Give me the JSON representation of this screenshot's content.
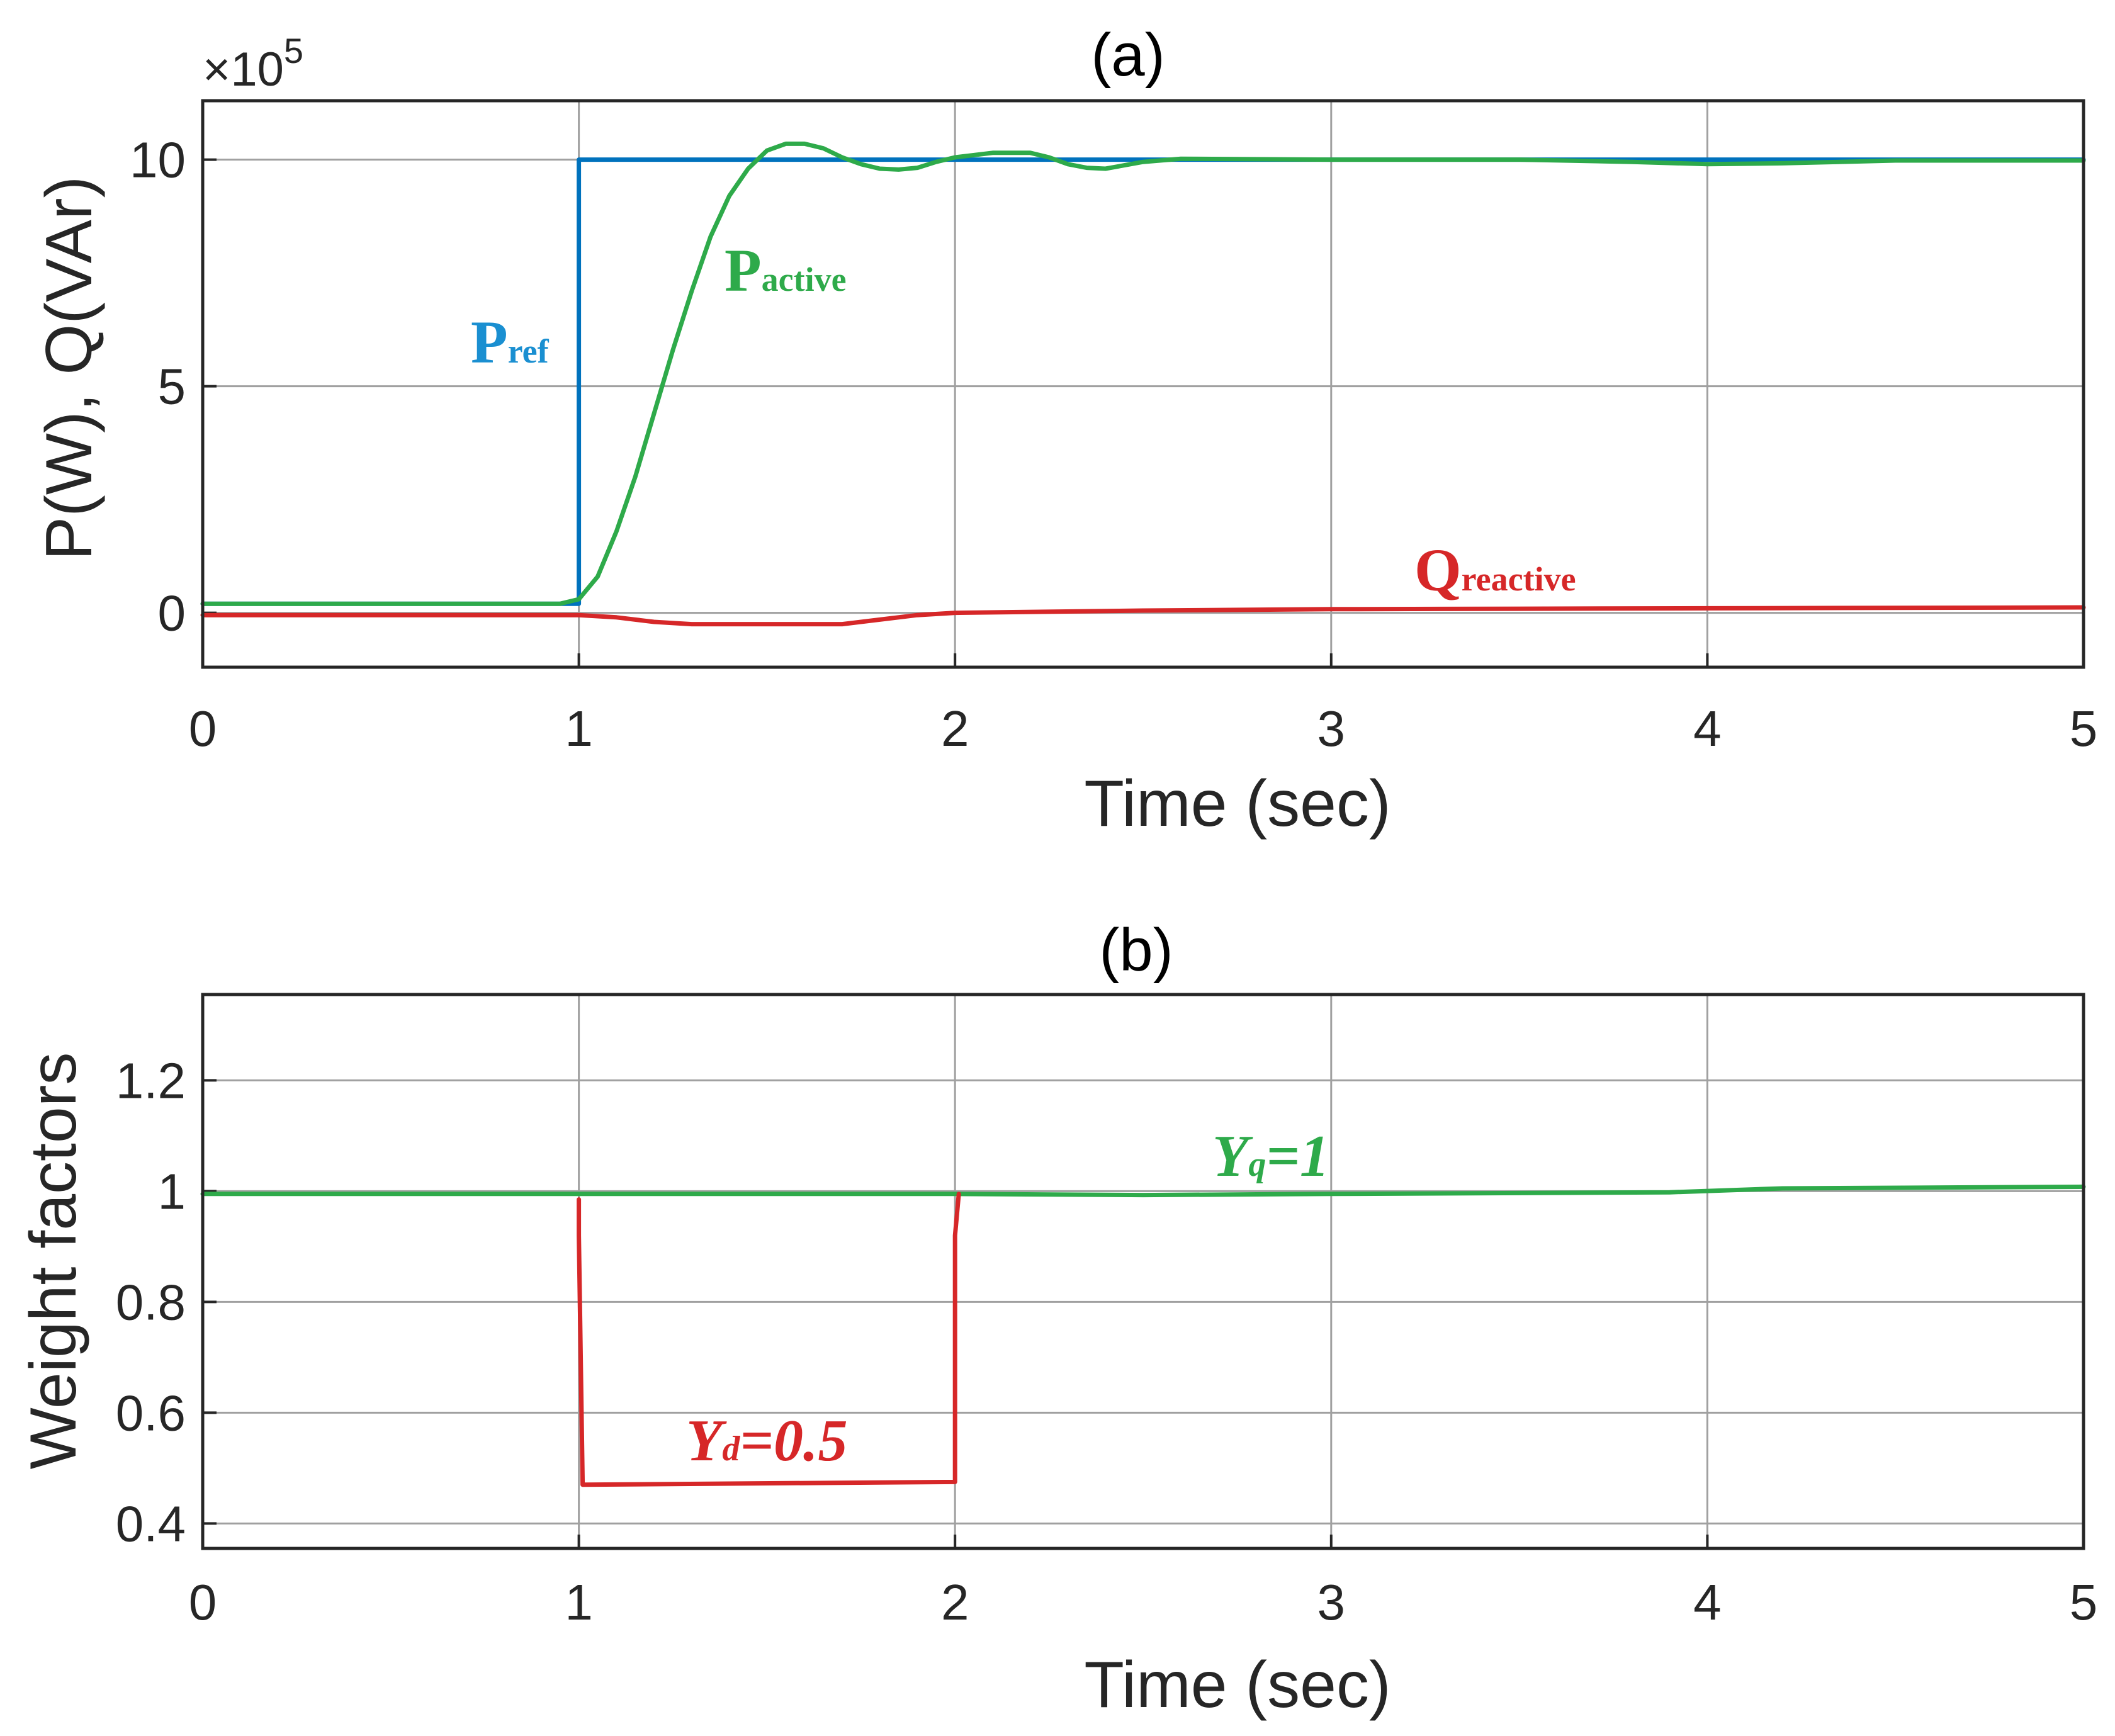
{
  "chart_data": [
    {
      "id": "a",
      "type": "line",
      "title": "(a)",
      "xlabel": "Time (sec)",
      "ylabel": "P(W), Q(VAr)",
      "y_exponent_base": "×10",
      "y_exponent_power": "5",
      "xlim": [
        0,
        5
      ],
      "ylim": [
        -1.2,
        11.3
      ],
      "xticks": [
        0,
        1,
        2,
        3,
        4,
        5
      ],
      "xtick_labels": [
        "0",
        "1",
        "2",
        "3",
        "4",
        "5"
      ],
      "yticks": [
        0,
        5,
        10
      ],
      "ytick_labels": [
        "0",
        "5",
        "10"
      ],
      "grid": true,
      "series": [
        {
          "name": "Pref",
          "color": "#0072BD",
          "x": [
            0,
            1,
            1,
            5
          ],
          "y": [
            0.2,
            0.2,
            10,
            10
          ]
        },
        {
          "name": "Pactive",
          "color": "#2EAA4A",
          "x": [
            0,
            0.95,
            1.0,
            1.05,
            1.1,
            1.15,
            1.2,
            1.25,
            1.3,
            1.35,
            1.4,
            1.45,
            1.5,
            1.55,
            1.6,
            1.65,
            1.7,
            1.75,
            1.8,
            1.85,
            1.9,
            1.95,
            2.0,
            2.1,
            2.2,
            2.25,
            2.3,
            2.35,
            2.4,
            2.5,
            2.6,
            3.0,
            3.5,
            3.8,
            4.0,
            4.2,
            4.5,
            5.0
          ],
          "y": [
            0.2,
            0.2,
            0.3,
            0.8,
            1.8,
            3.0,
            4.4,
            5.8,
            7.1,
            8.3,
            9.2,
            9.8,
            10.2,
            10.35,
            10.35,
            10.25,
            10.05,
            9.9,
            9.8,
            9.78,
            9.82,
            9.95,
            10.05,
            10.15,
            10.15,
            10.05,
            9.9,
            9.82,
            9.8,
            9.95,
            10.02,
            10.0,
            10.0,
            9.95,
            9.9,
            9.92,
            9.98,
            9.98
          ]
        },
        {
          "name": "Qreactive",
          "color": "#D62728",
          "x": [
            0,
            1.0,
            1.1,
            1.2,
            1.3,
            1.5,
            1.7,
            1.8,
            1.9,
            2.0,
            2.5,
            3.0,
            4.0,
            5.0
          ],
          "y": [
            -0.05,
            -0.05,
            -0.1,
            -0.2,
            -0.25,
            -0.25,
            -0.25,
            -0.15,
            -0.05,
            0.0,
            0.05,
            0.08,
            0.1,
            0.12
          ]
        }
      ],
      "annotations": [
        {
          "main": "P",
          "sub": "ref",
          "color": "#1A8FD1"
        },
        {
          "main": "P",
          "sub": "active",
          "color": "#2EAA4A"
        },
        {
          "main": "Q",
          "sub": "reactive",
          "color": "#D62728"
        }
      ]
    },
    {
      "id": "b",
      "type": "line",
      "title": "(b)",
      "xlabel": "Time (sec)",
      "ylabel": "Weight factors",
      "xlim": [
        0,
        5
      ],
      "ylim": [
        0.355,
        1.355
      ],
      "xticks": [
        0,
        1,
        2,
        3,
        4,
        5
      ],
      "xtick_labels": [
        "0",
        "1",
        "2",
        "3",
        "4",
        "5"
      ],
      "yticks": [
        0.4,
        0.6,
        0.8,
        1.0,
        1.2
      ],
      "ytick_labels": [
        "0.4",
        "0.6",
        "0.8",
        "1",
        "1.2"
      ],
      "grid": true,
      "series": [
        {
          "name": "Yq",
          "color": "#2EAA4A",
          "x": [
            0,
            1.0,
            2.0,
            2.5,
            3.0,
            3.9,
            4.2,
            5.0
          ],
          "y": [
            0.995,
            0.995,
            0.995,
            0.993,
            0.995,
            0.998,
            1.005,
            1.008
          ]
        },
        {
          "name": "Yd",
          "color": "#D62728",
          "x": [
            1.0,
            1.0,
            1.01,
            1.4,
            2.0,
            2.0,
            2.01
          ],
          "y": [
            0.985,
            0.92,
            0.47,
            0.472,
            0.475,
            0.92,
            0.995
          ]
        }
      ],
      "annotations": [
        {
          "main": "Y",
          "sub": "q",
          "suffix": "=1",
          "color": "#2EAA4A"
        },
        {
          "main": "Y",
          "sub": "d",
          "suffix": "=0.5",
          "color": "#D62728"
        }
      ]
    }
  ]
}
